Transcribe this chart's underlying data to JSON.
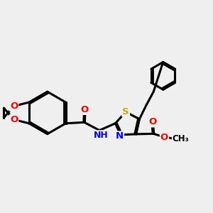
{
  "background_color": "#efefef",
  "line_color": "#000000",
  "bond_width": 2.2,
  "atom_colors": {
    "O": "#ff0000",
    "N": "#0000ff",
    "S": "#ccaa00",
    "C": "#000000",
    "H": "#000000"
  }
}
